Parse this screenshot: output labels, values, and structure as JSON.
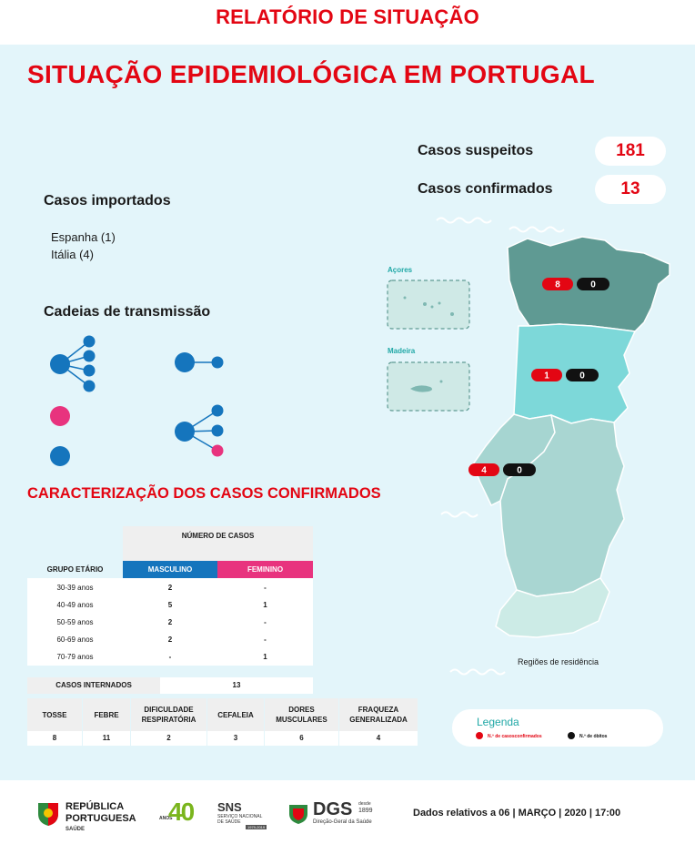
{
  "header": {
    "title": "RELATÓRIO DE SITUAÇÃO"
  },
  "main": {
    "title": "SITUAÇÃO EPIDEMIOLÓGICA EM PORTUGAL"
  },
  "stats": {
    "suspeitos_label": "Casos suspeitos",
    "suspeitos_value": "181",
    "confirmados_label": "Casos confirmados",
    "confirmados_value": "13"
  },
  "imported": {
    "title": "Casos importados",
    "items": [
      "Espanha (1)",
      "Itália (4)"
    ]
  },
  "chains": {
    "title": "Cadeias de transmissão"
  },
  "characterization": {
    "title": "CARACTERIZAÇÃO DOS CASOS CONFIRMADOS",
    "num_casos_header": "NÚMERO DE CASOS",
    "grupo_header": "GRUPO ETÁRIO",
    "masc_header": "MASCULINO",
    "fem_header": "FEMININO",
    "rows": [
      {
        "age": "30-39 anos",
        "masc": "2",
        "fem": "-"
      },
      {
        "age": "40-49 anos",
        "masc": "5",
        "fem": "1"
      },
      {
        "age": "50-59 anos",
        "masc": "2",
        "fem": "-"
      },
      {
        "age": "60-69 anos",
        "masc": "2",
        "fem": "-"
      },
      {
        "age": "70-79 anos",
        "masc": "-",
        "fem": "1"
      }
    ],
    "internados_label": "CASOS INTERNADOS",
    "internados_value": "13",
    "symptoms": [
      {
        "label": "TOSSE",
        "value": "8"
      },
      {
        "label": "FEBRE",
        "value": "11"
      },
      {
        "label": "DIFICULDADE RESPIRATÓRIA",
        "value": "2"
      },
      {
        "label": "CEFALEIA",
        "value": "3"
      },
      {
        "label": "DORES MUSCULARES",
        "value": "6"
      },
      {
        "label": "FRAQUEZA GENERALIZADA",
        "value": "4"
      }
    ]
  },
  "map": {
    "acores_label": "Açores",
    "madeira_label": "Madeira",
    "caption": "Regiões de residência",
    "north": {
      "confirmed": "8",
      "deaths": "0"
    },
    "centre": {
      "confirmed": "1",
      "deaths": "0"
    },
    "lisbon": {
      "confirmed": "4",
      "deaths": "0"
    },
    "colors": {
      "north": "#5f9a93",
      "centre": "#7dd8d9",
      "lisbon": "#a6d5d1",
      "alentejo": "#a9d6d2",
      "algarve": "#ccebe6"
    }
  },
  "legend": {
    "title": "Legenda",
    "confirmed_label": "N.º de casosconfirmados",
    "deaths_label": "N.º de óbitos"
  },
  "footer": {
    "republica_line1": "REPÚBLICA",
    "republica_line2": "PORTUGUESA",
    "republica_line3": "SAÚDE",
    "anos": "ANOS",
    "forty": "40",
    "sns": "SNS",
    "sns_sub1": "SERVIÇO NACIONAL",
    "sns_sub2": "DE SAÚDE",
    "sns_years": "1979-2019",
    "dgs": "DGS",
    "dgs_desde": "desde",
    "dgs_year": "1899",
    "dgs_sub": "Direção-Geral da Saúde",
    "date_text": "Dados relativos a 06 | MARÇO | 2020 | 17:00"
  },
  "colors": {
    "accent_red": "#e30613",
    "blue": "#1575bd",
    "pink": "#e8337e",
    "teal": "#20a8a6",
    "panel": "#e3f5fa"
  }
}
